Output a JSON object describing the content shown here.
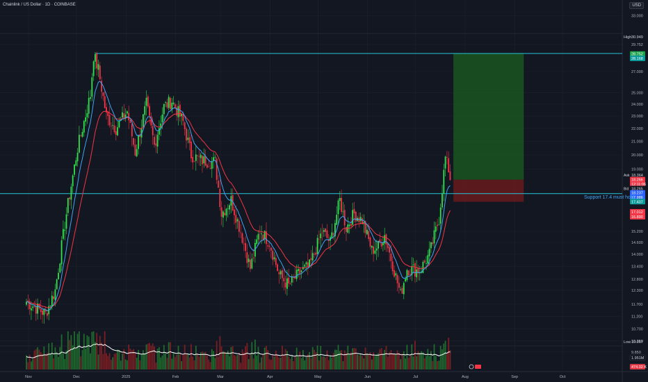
{
  "header": {
    "title": "Chainlink / US Dollar · 1D · COINBASE",
    "currency": "USD"
  },
  "annotations": {
    "support_label": "Support 17.4 must hold",
    "high_label": "High",
    "high_value": "30.949",
    "low_label": "Low",
    "low_value": "10.067"
  },
  "price_tags": [
    {
      "text": "28.752",
      "y": 28.752,
      "bg": "#1aa34a",
      "fg": "#ffffff"
    },
    {
      "text": "28.168",
      "y": 28.3,
      "bg": "#0b9a9a",
      "fg": "#ffffff"
    },
    {
      "text": "18.364",
      "y": 18.6,
      "bg": "#131722",
      "fg": "#d1d4dc",
      "prefix": "Ask"
    },
    {
      "text": "18.266",
      "y": 18.3,
      "bg": "#f23645",
      "fg": "#ffffff"
    },
    {
      "text": "12:11:06",
      "y": 18.02,
      "bg": "#f23645",
      "fg": "#ffffff"
    },
    {
      "text": "18.265",
      "y": 17.72,
      "bg": "#131722",
      "fg": "#d1d4dc",
      "prefix": "Bid"
    },
    {
      "text": "18.237",
      "y": 17.45,
      "bg": "#2962ff",
      "fg": "#ffffff"
    },
    {
      "text": "17.986",
      "y": 17.18,
      "bg": "#2962ff",
      "fg": "#ffffff"
    },
    {
      "text": "17.407",
      "y": 16.91,
      "bg": "#0b9a9a",
      "fg": "#ffffff"
    },
    {
      "text": "17.012",
      "y": 16.3,
      "bg": "#f23645",
      "fg": "#ffffff"
    },
    {
      "text": "16.890",
      "y": 16.02,
      "bg": "#f23645",
      "fg": "#ffffff"
    }
  ],
  "volume_tags": [
    {
      "text": "1.951M",
      "bg": "#131722",
      "fg": "#d1d4dc"
    },
    {
      "text": "474.02 K",
      "bg": "#f23645",
      "fg": "#ffffff"
    }
  ],
  "chart_data": {
    "type": "candlestick",
    "title": "Chainlink / US Dollar · 1D · COINBASE",
    "xlabel": "",
    "ylabel": "",
    "y_scale": "log",
    "ylim": [
      10.067,
      33.0
    ],
    "y_ticks": [
      33.0,
      29.752,
      27.0,
      25.0,
      24.0,
      23.0,
      22.0,
      21.0,
      20.0,
      19.0,
      15.2,
      14.6,
      14.0,
      13.4,
      12.8,
      12.3,
      11.7,
      11.2,
      10.7,
      10.25,
      9.85
    ],
    "y_tick_labels": [
      "33.000",
      "29.752",
      "27.000",
      "25.000",
      "24.000",
      "23.000",
      "22.000",
      "21.000",
      "20.000",
      "19.000",
      "15.200",
      "14.600",
      "14.000",
      "13.400",
      "12.800",
      "12.300",
      "11.700",
      "11.200",
      "10.700",
      "10.250",
      "9.850"
    ],
    "x_ticks": [
      {
        "label": "Nov",
        "day": 0
      },
      {
        "label": "Dec",
        "day": 30
      },
      {
        "label": "2025",
        "day": 61
      },
      {
        "label": "Feb",
        "day": 92
      },
      {
        "label": "Mar",
        "day": 120
      },
      {
        "label": "Apr",
        "day": 151
      },
      {
        "label": "May",
        "day": 181
      },
      {
        "label": "Jun",
        "day": 212
      },
      {
        "label": "Jul",
        "day": 242
      },
      {
        "label": "Aug",
        "day": 273
      },
      {
        "label": "Sep",
        "day": 304
      },
      {
        "label": "Oct",
        "day": 334
      }
    ],
    "last_day": 265,
    "keypoints": [
      [
        0,
        11.8
      ],
      [
        12,
        11.3
      ],
      [
        18,
        12.3
      ],
      [
        25,
        16.2
      ],
      [
        32,
        20.5
      ],
      [
        40,
        24.8
      ],
      [
        42,
        28.6
      ],
      [
        45,
        27.2
      ],
      [
        50,
        23.0
      ],
      [
        56,
        22.0
      ],
      [
        63,
        23.4
      ],
      [
        68,
        20.2
      ],
      [
        75,
        24.0
      ],
      [
        80,
        20.7
      ],
      [
        86,
        23.8
      ],
      [
        91,
        24.3
      ],
      [
        98,
        22.5
      ],
      [
        103,
        20.0
      ],
      [
        110,
        19.6
      ],
      [
        118,
        19.5
      ],
      [
        122,
        16.2
      ],
      [
        128,
        17.0
      ],
      [
        134,
        15.2
      ],
      [
        140,
        13.3
      ],
      [
        146,
        15.3
      ],
      [
        152,
        14.6
      ],
      [
        158,
        13.0
      ],
      [
        164,
        12.5
      ],
      [
        172,
        13.2
      ],
      [
        177,
        13.4
      ],
      [
        185,
        15.2
      ],
      [
        190,
        14.6
      ],
      [
        196,
        17.0
      ],
      [
        200,
        15.4
      ],
      [
        205,
        16.2
      ],
      [
        210,
        15.8
      ],
      [
        216,
        14.2
      ],
      [
        220,
        14.4
      ],
      [
        224,
        15.0
      ],
      [
        230,
        13.2
      ],
      [
        234,
        12.1
      ],
      [
        238,
        13.3
      ],
      [
        246,
        13.2
      ],
      [
        252,
        14.0
      ],
      [
        258,
        15.9
      ],
      [
        262,
        19.8
      ],
      [
        264,
        19.0
      ],
      [
        265,
        18.27
      ]
    ],
    "ema_fast_period": 9,
    "ema_slow_period": 21,
    "ema_fast_color": "#42a5f5",
    "ema_slow_color": "#f23645",
    "volume_average_color": "#ffffff",
    "support_level": 17.407,
    "upper_level": 28.8,
    "high": 30.949,
    "low": 10.067,
    "position": {
      "type": "long",
      "start_day": 267,
      "end_day": 311,
      "entry": 18.3,
      "target": 28.8,
      "stop": 16.9,
      "profit_color": "#1b5e20",
      "loss_color": "#8b1a1a"
    },
    "colors": {
      "background": "#131722",
      "up": "#2fe24e",
      "down": "#f23645",
      "grid": "#1e222d",
      "axis_text": "#b2b5be"
    }
  }
}
